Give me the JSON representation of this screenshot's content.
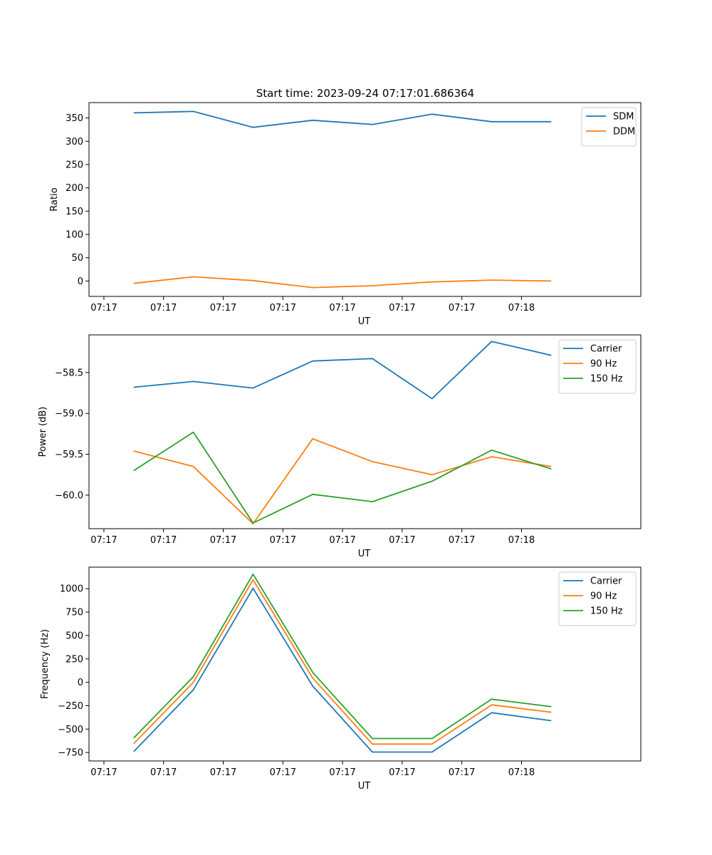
{
  "title": "Start time: 2023-09-24 07:17:01.686364",
  "colors": {
    "blue": "#1f77b4",
    "orange": "#ff7f0e",
    "green": "#2ca02c"
  },
  "chart_data": [
    {
      "type": "line",
      "xlabel": "UT",
      "ylabel": "Ratio",
      "x_tick_labels": [
        "07:17",
        "07:17",
        "07:17",
        "07:17",
        "07:17",
        "07:17",
        "07:17",
        "07:18"
      ],
      "x_range": [
        -0.25,
        9.0
      ],
      "x": [
        0.5,
        1.5,
        2.5,
        3.5,
        4.5,
        5.5,
        6.5,
        7.5
      ],
      "ylim": [
        -33,
        383
      ],
      "y_ticks": [
        0,
        50,
        100,
        150,
        200,
        250,
        300,
        350
      ],
      "y_tick_labels": [
        "0",
        "50",
        "100",
        "150",
        "200",
        "250",
        "300",
        "350"
      ],
      "legend_position": "top-right",
      "series": [
        {
          "name": "SDM",
          "color": "#1f77b4",
          "values": [
            361,
            364,
            330,
            345,
            336,
            358,
            342,
            342
          ]
        },
        {
          "name": "DDM",
          "color": "#ff7f0e",
          "values": [
            -5,
            9,
            1,
            -14,
            -10,
            -2,
            2,
            0
          ]
        }
      ]
    },
    {
      "type": "line",
      "xlabel": "UT",
      "ylabel": "Power (dB)",
      "x_tick_labels": [
        "07:17",
        "07:17",
        "07:17",
        "07:17",
        "07:17",
        "07:17",
        "07:17",
        "07:18"
      ],
      "x_range": [
        -0.25,
        9.0
      ],
      "x": [
        0.5,
        1.5,
        2.5,
        3.5,
        4.5,
        5.5,
        6.5,
        7.5
      ],
      "ylim": [
        -60.41,
        -58.04
      ],
      "y_ticks": [
        -60.0,
        -59.5,
        -59.0,
        -58.5
      ],
      "y_tick_labels": [
        "−60.0",
        "−59.5",
        "−59.0",
        "−58.5"
      ],
      "legend_position": "top-right",
      "series": [
        {
          "name": "Carrier",
          "color": "#1f77b4",
          "values": [
            -58.68,
            -58.61,
            -58.69,
            -58.36,
            -58.33,
            -58.82,
            -58.12,
            -58.29
          ]
        },
        {
          "name": "90 Hz",
          "color": "#ff7f0e",
          "values": [
            -59.46,
            -59.65,
            -60.35,
            -59.31,
            -59.59,
            -59.75,
            -59.53,
            -59.65
          ]
        },
        {
          "name": "150 Hz",
          "color": "#2ca02c",
          "values": [
            -59.7,
            -59.23,
            -60.34,
            -59.99,
            -60.08,
            -59.83,
            -59.45,
            -59.68
          ]
        }
      ]
    },
    {
      "type": "line",
      "xlabel": "UT",
      "ylabel": "Frequency (Hz)",
      "x_tick_labels": [
        "07:17",
        "07:17",
        "07:17",
        "07:17",
        "07:17",
        "07:17",
        "07:17",
        "07:18"
      ],
      "x_range": [
        -0.25,
        9.0
      ],
      "x": [
        0.5,
        1.5,
        2.5,
        3.5,
        4.5,
        5.5,
        6.5,
        7.5
      ],
      "ylim": [
        -840,
        1230
      ],
      "y_ticks": [
        -750,
        -500,
        -250,
        0,
        250,
        500,
        750,
        1000
      ],
      "y_tick_labels": [
        "−750",
        "−500",
        "−250",
        "0",
        "250",
        "500",
        "750",
        "1000"
      ],
      "legend_position": "top-right",
      "series": [
        {
          "name": "Carrier",
          "color": "#1f77b4",
          "values": [
            -740,
            -80,
            1005,
            -40,
            -745,
            -745,
            -325,
            -410
          ]
        },
        {
          "name": "90 Hz",
          "color": "#ff7f0e",
          "values": [
            -655,
            0,
            1095,
            45,
            -660,
            -660,
            -240,
            -320
          ]
        },
        {
          "name": "150 Hz",
          "color": "#2ca02c",
          "values": [
            -595,
            60,
            1155,
            105,
            -600,
            -600,
            -180,
            -260
          ]
        }
      ]
    }
  ]
}
